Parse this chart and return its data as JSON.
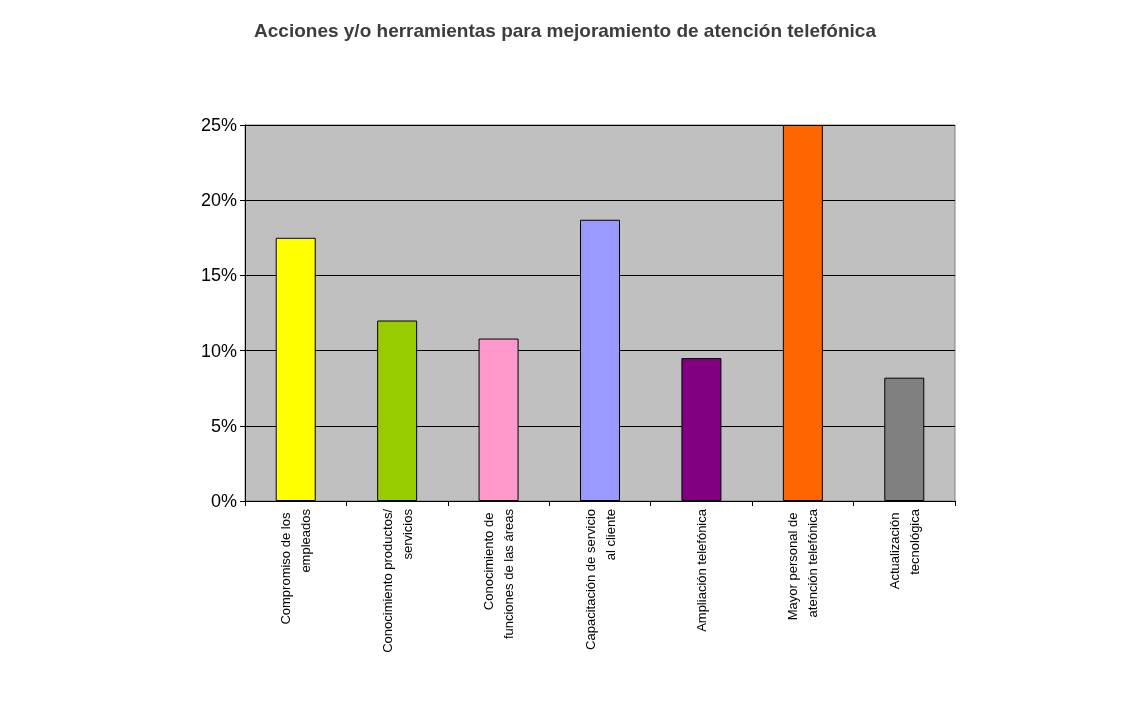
{
  "chart_data": {
    "type": "bar",
    "title": "Acciones y/o herramientas para mejoramiento de atención telefónica",
    "categories": [
      "Compromiso de los empleados",
      "Conocimiento productos/servicios",
      "Conocimiento de funciones de las áreas",
      "Capacitación de servicio al cliente",
      "Ampliación telefónica",
      "Mayor personal de atención telefónica",
      "Actualización tecnológica"
    ],
    "values": [
      17.5,
      12,
      10.8,
      18.7,
      9.5,
      25,
      8.2
    ],
    "colors": [
      "#ffff00",
      "#99cc00",
      "#ff99cc",
      "#9999ff",
      "#800080",
      "#ff6600",
      "#808080"
    ],
    "ylim": [
      0,
      25
    ],
    "yticks": [
      {
        "value": 0,
        "label": "0%"
      },
      {
        "value": 5,
        "label": "5%"
      },
      {
        "value": 10,
        "label": "10%"
      },
      {
        "value": 15,
        "label": "15%"
      },
      {
        "value": 20,
        "label": "20%"
      },
      {
        "value": 25,
        "label": "25%"
      }
    ],
    "grid": "y"
  }
}
